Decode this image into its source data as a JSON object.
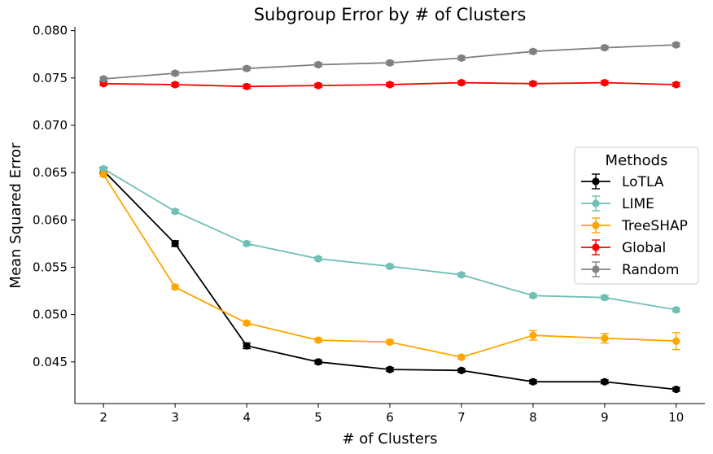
{
  "chart_data": {
    "type": "line",
    "title": "Subgroup Error by # of Clusters",
    "xlabel": "# of Clusters",
    "ylabel": "Mean Squared Error",
    "x": [
      2,
      3,
      4,
      5,
      6,
      7,
      8,
      9,
      10
    ],
    "xlim": [
      1.6,
      10.4
    ],
    "ylim": [
      0.0406,
      0.0804
    ],
    "yticks": [
      "0.045",
      "0.050",
      "0.055",
      "0.060",
      "0.065",
      "0.070",
      "0.075",
      "0.080"
    ],
    "xticks": [
      "2",
      "3",
      "4",
      "5",
      "6",
      "7",
      "8",
      "9",
      "10"
    ],
    "grid": false,
    "legend": {
      "title": "Methods",
      "placement": "center-right"
    },
    "series": [
      {
        "name": "LoTLA",
        "color": "#000000",
        "values": [
          0.0652,
          0.0575,
          0.0467,
          0.045,
          0.0442,
          0.0441,
          0.0429,
          0.0429,
          0.0421
        ],
        "errors": [
          0.0003,
          0.0003,
          0.0003,
          0.0002,
          0.0002,
          0.0002,
          0.0002,
          0.0002,
          0.0002
        ]
      },
      {
        "name": "LIME",
        "color": "#6fbfb5",
        "values": [
          0.0654,
          0.0609,
          0.0575,
          0.0559,
          0.0551,
          0.0542,
          0.052,
          0.0518,
          0.0505
        ],
        "errors": [
          0.0002,
          0.0002,
          0.0002,
          0.0002,
          0.0002,
          0.0002,
          0.0002,
          0.0002,
          0.0002
        ]
      },
      {
        "name": "TreeSHAP",
        "color": "#ffa500",
        "values": [
          0.0648,
          0.0529,
          0.0491,
          0.0473,
          0.0471,
          0.0455,
          0.0478,
          0.0475,
          0.0472
        ],
        "errors": [
          0.0002,
          0.0002,
          0.0002,
          0.0002,
          0.0002,
          0.0002,
          0.0005,
          0.0005,
          0.0009
        ]
      },
      {
        "name": "Global",
        "color": "#ff0000",
        "values": [
          0.0744,
          0.0743,
          0.0741,
          0.0742,
          0.0743,
          0.0745,
          0.0744,
          0.0745,
          0.0743
        ],
        "errors": [
          0.0002,
          0.0002,
          0.0002,
          0.0002,
          0.0002,
          0.0002,
          0.0002,
          0.0002,
          0.0002
        ]
      },
      {
        "name": "Random",
        "color": "#808080",
        "values": [
          0.0749,
          0.0755,
          0.076,
          0.0764,
          0.0766,
          0.0771,
          0.0778,
          0.0782,
          0.0785
        ],
        "errors": [
          0.0002,
          0.0002,
          0.0002,
          0.0002,
          0.0002,
          0.0002,
          0.0002,
          0.0002,
          0.0002
        ]
      }
    ]
  }
}
